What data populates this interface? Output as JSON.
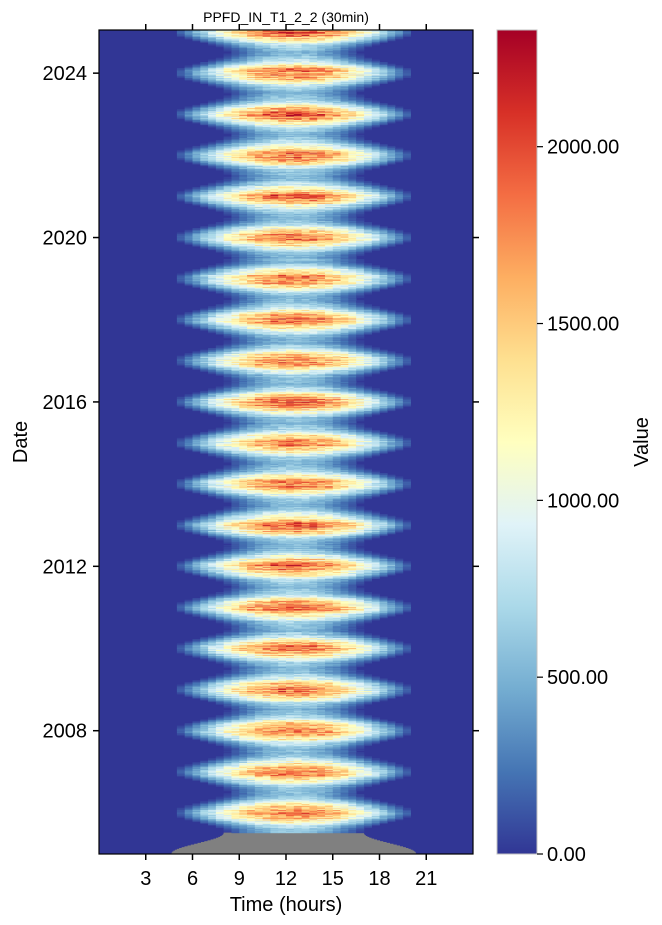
{
  "chart_data": {
    "type": "heatmap",
    "title": "PPFD_IN_T1_2_2 (30min)",
    "xlabel": "Time (hours)",
    "ylabel": "Date",
    "xlim": [
      0,
      24
    ],
    "ylim": [
      2005.0,
      2025.05
    ],
    "xticks": [
      3,
      6,
      9,
      12,
      15,
      18,
      21
    ],
    "yticks": [
      2008,
      2012,
      2016,
      2020,
      2024
    ],
    "colorbar": {
      "label": "Value",
      "range": [
        0,
        2330
      ],
      "ticks": [
        "0.00",
        "500.00",
        "1000.00",
        "1500.00",
        "2000.00"
      ],
      "tick_values": [
        0,
        500,
        1000,
        1500,
        2000
      ],
      "colormap": "RdYlBu_r",
      "colors": [
        "#313695",
        "#4575b4",
        "#74add1",
        "#abd9e9",
        "#e0f3f8",
        "#ffffbf",
        "#fee090",
        "#fdae61",
        "#f46d43",
        "#d73027",
        "#a50026"
      ]
    },
    "missing_data": {
      "color": "#808080",
      "from": 2005.0,
      "to": 2005.5
    },
    "pattern": "Daytime PPFD peaking around solar noon (12:30), with day length and peak magnitude varying seasonally each year; summers peak near 2000-2300, winters near 600-900; night values 0.",
    "annual_summer_peak": [
      {
        "year": 2006,
        "peak": 2050
      },
      {
        "year": 2007,
        "peak": 2050
      },
      {
        "year": 2008,
        "peak": 2150
      },
      {
        "year": 2009,
        "peak": 2050
      },
      {
        "year": 2010,
        "peak": 2100
      },
      {
        "year": 2011,
        "peak": 2100
      },
      {
        "year": 2012,
        "peak": 2150
      },
      {
        "year": 2013,
        "peak": 2100
      },
      {
        "year": 2014,
        "peak": 2050
      },
      {
        "year": 2015,
        "peak": 2150
      },
      {
        "year": 2016,
        "peak": 2150
      },
      {
        "year": 2017,
        "peak": 2050
      },
      {
        "year": 2018,
        "peak": 2200
      },
      {
        "year": 2019,
        "peak": 2050
      },
      {
        "year": 2020,
        "peak": 2100
      },
      {
        "year": 2021,
        "peak": 2050
      },
      {
        "year": 2022,
        "peak": 2200
      },
      {
        "year": 2023,
        "peak": 2100
      },
      {
        "year": 2024,
        "peak": 2150
      }
    ],
    "grid": false
  }
}
